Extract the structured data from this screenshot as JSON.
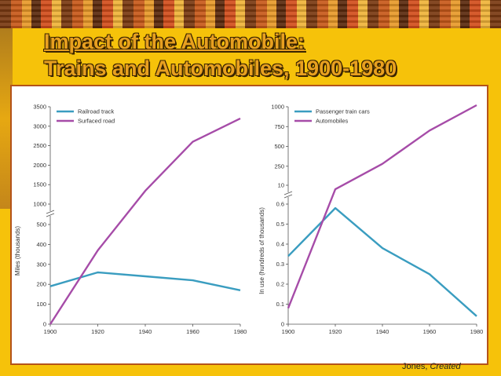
{
  "slide": {
    "title_line1": "Impact of the Automobile:",
    "title_line2": "Trains and Automobiles, 1900-1980",
    "credit_prefix": "Jones,",
    "credit_italic": "Created"
  },
  "colors": {
    "background": "#f6c20a",
    "title": "#e8a020",
    "border": "#b4531a",
    "blue_series": "#3a9dc0",
    "purple_series": "#a64ca8"
  },
  "chart_data": [
    {
      "type": "line",
      "ylabel": "Miles (thousands)",
      "xlabel": "",
      "x": [
        1900,
        1920,
        1940,
        1960,
        1980
      ],
      "xticks": [
        "1900",
        "1920",
        "1940",
        "1960",
        "1980"
      ],
      "broken_axis": true,
      "ylim_lower": [
        0,
        500
      ],
      "ylim_upper": [
        1000,
        3500
      ],
      "yticks_lower": [
        "0",
        "100",
        "200",
        "300",
        "400",
        "500"
      ],
      "yticks_upper": [
        "1000",
        "1500",
        "2000",
        "2500",
        "3000",
        "3500"
      ],
      "legend_position": "top-left",
      "series": [
        {
          "name": "Railroad track",
          "color": "#3a9dc0",
          "values": [
            190,
            260,
            240,
            220,
            170
          ]
        },
        {
          "name": "Surfaced road",
          "color": "#a64ca8",
          "values": [
            0,
            370,
            1340,
            2600,
            3200
          ]
        }
      ]
    },
    {
      "type": "line",
      "ylabel": "In use (hundreds of thousands)",
      "xlabel": "",
      "x": [
        1900,
        1920,
        1940,
        1960,
        1980
      ],
      "xticks": [
        "1900",
        "1920",
        "1940",
        "1960",
        "1980"
      ],
      "broken_axis": true,
      "ylim_lower": [
        0,
        0.6
      ],
      "ylim_upper": [
        10,
        1000
      ],
      "yticks_lower": [
        "0",
        "0.1",
        "0.2",
        "0.3",
        "0.4",
        "0.5",
        "0.6"
      ],
      "yticks_upper": [
        "10",
        "250",
        "500",
        "750",
        "1000"
      ],
      "legend_position": "top-left",
      "series": [
        {
          "name": "Passenger train cars",
          "color": "#3a9dc0",
          "values": [
            0.34,
            0.58,
            0.38,
            0.25,
            0.04
          ]
        },
        {
          "name": "Automobiles",
          "color": "#a64ca8",
          "values": [
            0.08,
            8,
            280,
            700,
            1020
          ]
        }
      ]
    }
  ]
}
